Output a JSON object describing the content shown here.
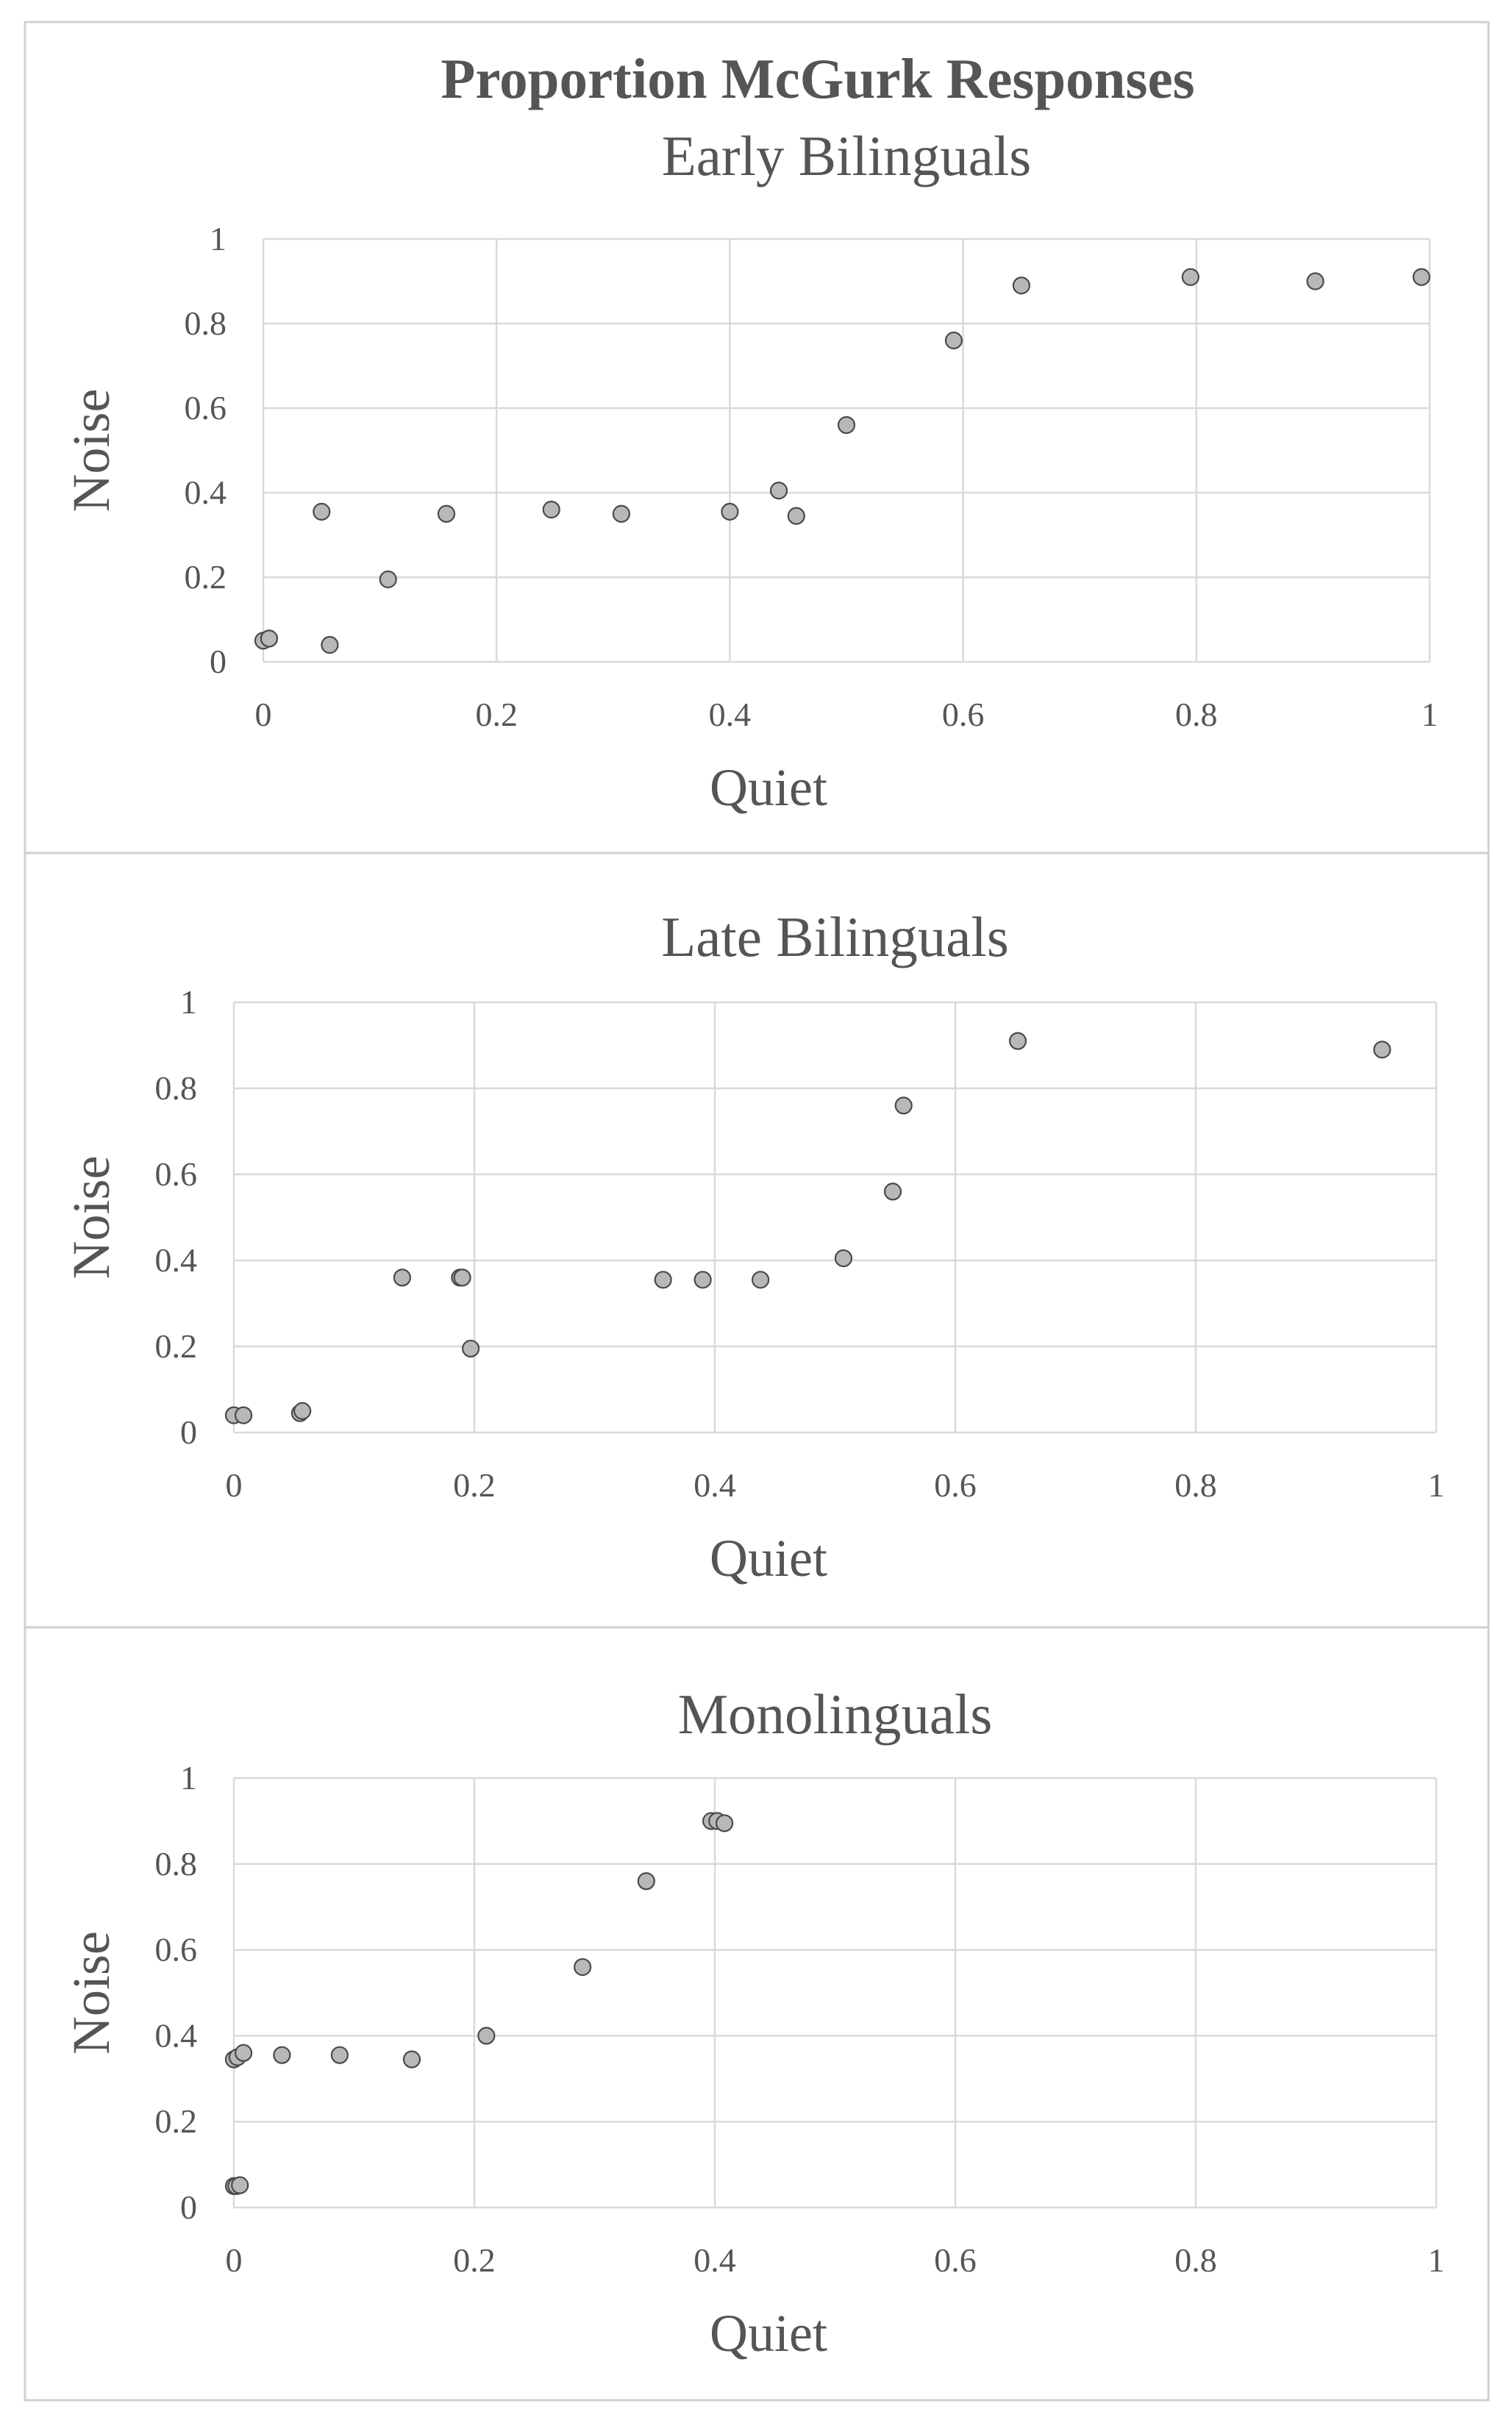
{
  "main_title": "Proportion McGurk Responses",
  "chart_data": [
    {
      "type": "scatter",
      "title": "Early Bilinguals",
      "xlabel": "Quiet",
      "ylabel": "Noise",
      "xlim": [
        0,
        1
      ],
      "ylim": [
        0,
        1
      ],
      "x_ticks": [
        "0",
        "0.2",
        "0.4",
        "0.6",
        "0.8",
        "1"
      ],
      "y_ticks": [
        "0",
        "0.2",
        "0.4",
        "0.6",
        "0.8",
        "1"
      ],
      "grid": true,
      "series": [
        {
          "x": [
            0.0,
            0.005,
            0.005,
            0.05,
            0.057,
            0.107,
            0.157,
            0.247,
            0.307,
            0.4,
            0.442,
            0.457,
            0.5,
            0.592,
            0.65,
            0.795,
            0.902,
            0.993
          ],
          "y": [
            0.05,
            0.055,
            0.055,
            0.355,
            0.04,
            0.195,
            0.35,
            0.36,
            0.35,
            0.355,
            0.405,
            0.345,
            0.56,
            0.76,
            0.89,
            0.91,
            0.9,
            0.91
          ]
        }
      ]
    },
    {
      "type": "scatter",
      "title": "Late Bilinguals",
      "xlabel": "Quiet",
      "ylabel": "Noise",
      "xlim": [
        0,
        1
      ],
      "ylim": [
        0,
        1
      ],
      "x_ticks": [
        "0",
        "0.2",
        "0.4",
        "0.6",
        "0.8",
        "1"
      ],
      "y_ticks": [
        "0",
        "0.2",
        "0.4",
        "0.6",
        "0.8",
        "1"
      ],
      "grid": true,
      "series": [
        {
          "x": [
            0.0,
            0.008,
            0.055,
            0.057,
            0.14,
            0.188,
            0.19,
            0.197,
            0.357,
            0.39,
            0.438,
            0.507,
            0.548,
            0.557,
            0.652,
            0.955
          ],
          "y": [
            0.04,
            0.04,
            0.045,
            0.05,
            0.36,
            0.36,
            0.36,
            0.195,
            0.355,
            0.355,
            0.355,
            0.405,
            0.56,
            0.76,
            0.91,
            0.89
          ]
        }
      ]
    },
    {
      "type": "scatter",
      "title": "Monolinguals",
      "xlabel": "Quiet",
      "ylabel": "Noise",
      "xlim": [
        0,
        1
      ],
      "ylim": [
        0,
        1
      ],
      "x_ticks": [
        "0",
        "0.2",
        "0.4",
        "0.6",
        "0.8",
        "1"
      ],
      "y_ticks": [
        "0",
        "0.2",
        "0.4",
        "0.6",
        "0.8",
        "1"
      ],
      "grid": true,
      "series": [
        {
          "x": [
            0.0,
            0.002,
            0.005,
            0.0,
            0.003,
            0.008,
            0.04,
            0.088,
            0.148,
            0.21,
            0.29,
            0.343,
            0.397,
            0.402,
            0.408
          ],
          "y": [
            0.05,
            0.05,
            0.052,
            0.345,
            0.35,
            0.36,
            0.355,
            0.355,
            0.345,
            0.4,
            0.56,
            0.76,
            0.9,
            0.9,
            0.895
          ]
        }
      ]
    }
  ]
}
